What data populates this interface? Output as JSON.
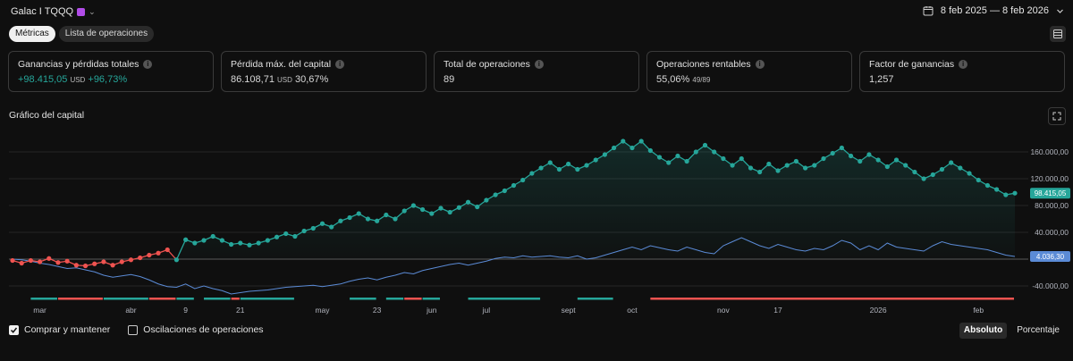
{
  "header": {
    "title": "Galac I TQQQ",
    "date_range": "8 feb 2025 — 8 feb 2026"
  },
  "tabs": [
    {
      "label": "Métricas",
      "active": true
    },
    {
      "label": "Lista de operaciones",
      "active": false
    }
  ],
  "cards": [
    {
      "label": "Ganancias y pérdidas totales",
      "value": "+98.415,05",
      "unit": "USD",
      "extra": "+96,73%"
    },
    {
      "label": "Pérdida máx. del capital",
      "value": "86.108,71",
      "unit": "USD",
      "extra": "30,67%"
    },
    {
      "label": "Total de operaciones",
      "value": "89",
      "unit": "",
      "extra": ""
    },
    {
      "label": "Operaciones rentables",
      "value": "55,06%",
      "unit": "",
      "extra": "49/89"
    },
    {
      "label": "Factor de ganancias",
      "value": "1,257",
      "unit": "",
      "extra": ""
    }
  ],
  "equity_section": {
    "title": "Gráfico del capital"
  },
  "chart_data": {
    "type": "line",
    "y_ticks": [
      -40000,
      40000,
      80000,
      120000,
      160000
    ],
    "y_tick_labels": [
      "-40.000,00",
      "40.000,00",
      "80.000,00",
      "120.000,00",
      "160.000,00"
    ],
    "ylim": [
      -60000,
      200000
    ],
    "x_labels": [
      "mar",
      "abr",
      "9",
      "21",
      "may",
      "23",
      "jun",
      "jul",
      "sept",
      "oct",
      "nov",
      "17",
      "2026",
      "feb"
    ],
    "x_label_pos": [
      3,
      13,
      19,
      25,
      34,
      40,
      46,
      52,
      61,
      68,
      78,
      84,
      95,
      106
    ],
    "x_count": 111,
    "equity_series": {
      "values": [
        -2000,
        -6000,
        -2000,
        -4000,
        1000,
        -5000,
        -3000,
        -9000,
        -10000,
        -7000,
        -4000,
        -9000,
        -4000,
        -1000,
        2000,
        6000,
        9000,
        14000,
        -1000,
        29000,
        24000,
        28000,
        34000,
        28000,
        22000,
        24000,
        21000,
        24000,
        28000,
        33000,
        38000,
        34000,
        42000,
        46000,
        53000,
        48000,
        57000,
        62000,
        68000,
        60000,
        57000,
        66000,
        60000,
        72000,
        80000,
        74000,
        68000,
        76000,
        70000,
        77000,
        85000,
        78000,
        88000,
        96000,
        102000,
        110000,
        118000,
        128000,
        136000,
        144000,
        134000,
        142000,
        134000,
        140000,
        148000,
        156000,
        166000,
        176000,
        166000,
        176000,
        162000,
        152000,
        144000,
        154000,
        146000,
        160000,
        170000,
        160000,
        150000,
        140000,
        150000,
        136000,
        130000,
        142000,
        132000,
        140000,
        146000,
        136000,
        140000,
        150000,
        158000,
        166000,
        154000,
        146000,
        156000,
        148000,
        138000,
        148000,
        140000,
        130000,
        120000,
        126000,
        134000,
        144000,
        136000,
        128000,
        118000,
        110000,
        104000,
        96000,
        98415
      ],
      "negative_until_index": 18,
      "last_value_label": "98.415,05",
      "color_positive": "#26a69a",
      "color_negative": "#ef5350"
    },
    "buy_hold_series": {
      "values": [
        0,
        -1000,
        -3000,
        -6000,
        -8000,
        -11000,
        -14000,
        -13000,
        -16000,
        -19000,
        -24000,
        -27000,
        -25000,
        -23000,
        -26000,
        -31000,
        -37000,
        -41000,
        -42000,
        -37000,
        -44000,
        -40000,
        -44000,
        -47000,
        -52000,
        -50000,
        -48000,
        -47000,
        -46000,
        -44000,
        -42000,
        -41000,
        -40000,
        -39000,
        -41000,
        -39000,
        -37000,
        -33000,
        -30000,
        -28000,
        -31000,
        -27000,
        -24000,
        -20000,
        -22000,
        -17000,
        -14000,
        -11000,
        -8000,
        -6000,
        -9000,
        -6000,
        -3000,
        1000,
        3000,
        2000,
        5000,
        3000,
        4000,
        5000,
        3000,
        2000,
        5000,
        0,
        2000,
        6000,
        10000,
        14000,
        18000,
        14000,
        20000,
        17000,
        14000,
        12000,
        18000,
        14000,
        10000,
        8000,
        20000,
        26000,
        32000,
        26000,
        20000,
        16000,
        22000,
        18000,
        14000,
        12000,
        16000,
        14000,
        20000,
        28000,
        24000,
        14000,
        20000,
        14000,
        24000,
        18000,
        16000,
        14000,
        12000,
        20000,
        26000,
        22000,
        20000,
        18000,
        16000,
        14000,
        10000,
        6000,
        4036
      ],
      "last_value_label": "4.036,30",
      "color": "#5b8bd6"
    },
    "trade_segments": [
      {
        "start": 2,
        "end": 5,
        "color": "#26a69a"
      },
      {
        "start": 5,
        "end": 10,
        "color": "#ef5350"
      },
      {
        "start": 10,
        "end": 15,
        "color": "#26a69a"
      },
      {
        "start": 15,
        "end": 18,
        "color": "#ef5350"
      },
      {
        "start": 18,
        "end": 20,
        "color": "#26a69a"
      },
      {
        "start": 21,
        "end": 24,
        "color": "#26a69a"
      },
      {
        "start": 24,
        "end": 25,
        "color": "#ef5350"
      },
      {
        "start": 25,
        "end": 31,
        "color": "#26a69a"
      },
      {
        "start": 37,
        "end": 40,
        "color": "#26a69a"
      },
      {
        "start": 41,
        "end": 43,
        "color": "#26a69a"
      },
      {
        "start": 43,
        "end": 45,
        "color": "#ef5350"
      },
      {
        "start": 45,
        "end": 47,
        "color": "#26a69a"
      },
      {
        "start": 50,
        "end": 58,
        "color": "#26a69a"
      },
      {
        "start": 62,
        "end": 66,
        "color": "#26a69a"
      },
      {
        "start": 70,
        "end": 110,
        "color": "#ef5350"
      }
    ]
  },
  "footer": {
    "buy_hold_label": "Comprar y mantener",
    "buy_hold_checked": true,
    "excursions_label": "Oscilaciones de operaciones",
    "excursions_checked": false,
    "modes": [
      {
        "label": "Absoluto",
        "active": true
      },
      {
        "label": "Porcentaje",
        "active": false
      }
    ]
  }
}
